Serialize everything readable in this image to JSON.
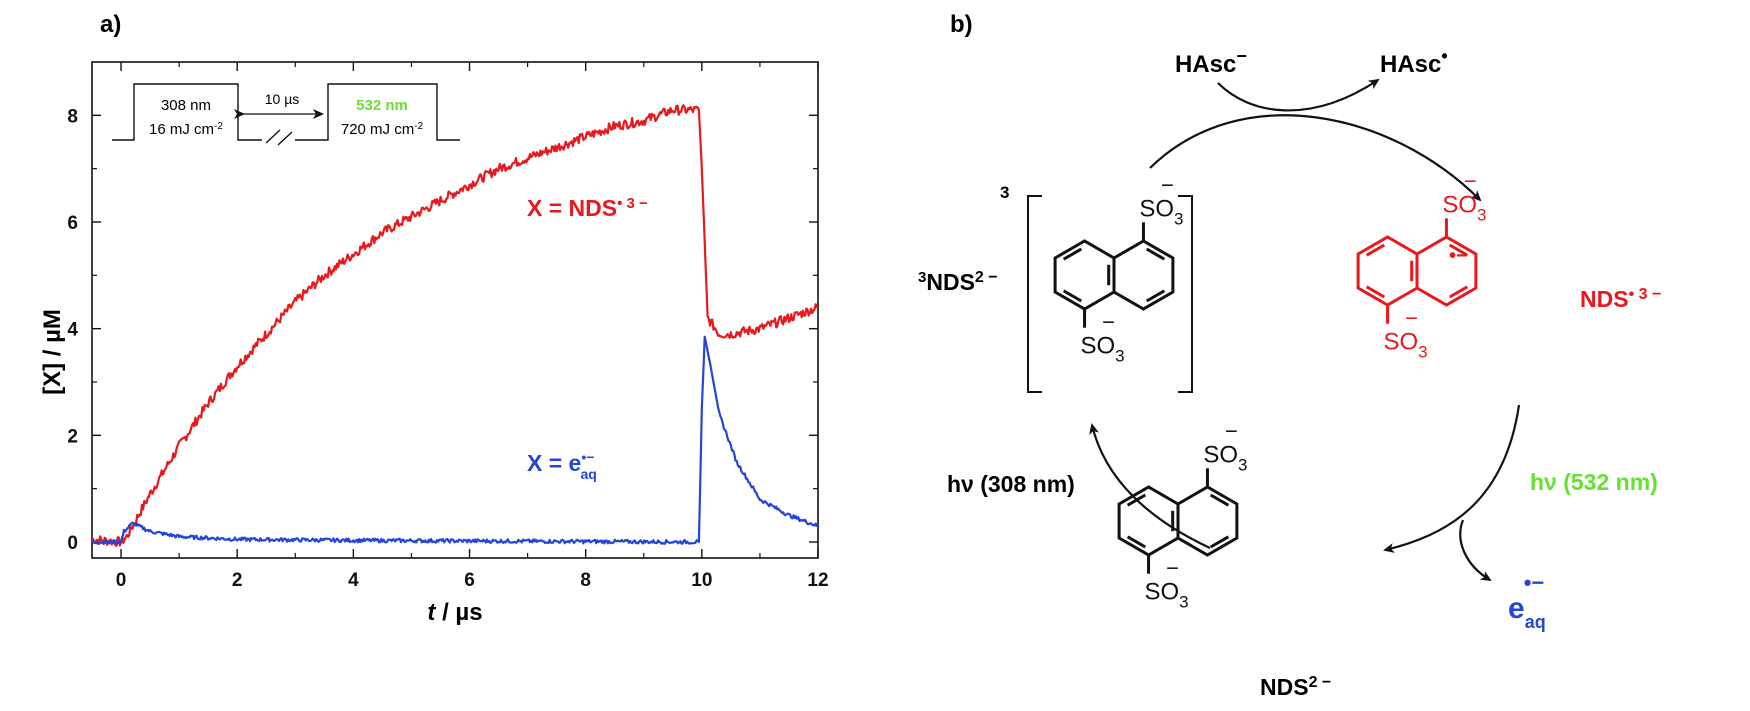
{
  "panel_a": {
    "label": "a)",
    "x_axis_label_italic": "t",
    "x_axis_label_rest": " / µs",
    "y_axis_label": "[X] / µM",
    "inset": {
      "pulse1_wavelength": "308 nm",
      "pulse1_energy": "16 mJ cm",
      "pulse1_energy_exp": "-2",
      "delay": "10 µs",
      "pulse2_wavelength": "532 nm",
      "pulse2_energy": "720 mJ cm",
      "pulse2_energy_exp": "-2"
    },
    "series_label_nds": "X = NDS",
    "series_label_nds_sup": "• 3 −",
    "series_label_e": "X = e",
    "series_label_e_sup": "•−",
    "series_label_e_sub": "aq"
  },
  "chart_data": {
    "type": "line",
    "x_ticks": [
      "0",
      "2",
      "4",
      "6",
      "8",
      "10",
      "12"
    ],
    "y_ticks": [
      "0",
      "2",
      "4",
      "6",
      "8"
    ],
    "xlim": [
      -0.5,
      12
    ],
    "ylim": [
      -0.3,
      9
    ],
    "series": [
      {
        "color": "#e8181c",
        "x": [
          -0.5,
          0.0,
          0.1,
          0.5,
          1.0,
          1.5,
          2.0,
          2.5,
          3.0,
          3.5,
          4.0,
          4.5,
          5.0,
          5.5,
          6.0,
          6.5,
          7.0,
          7.5,
          8.0,
          8.5,
          9.0,
          9.5,
          9.95,
          10.0,
          10.1,
          10.3,
          10.5,
          11.0,
          11.5,
          12.0
        ],
        "y": [
          0.05,
          0.0,
          0.1,
          0.9,
          1.8,
          2.6,
          3.3,
          3.9,
          4.5,
          5.0,
          5.4,
          5.8,
          6.1,
          6.4,
          6.7,
          7.0,
          7.2,
          7.4,
          7.6,
          7.8,
          7.9,
          8.1,
          8.1,
          7.0,
          4.2,
          3.9,
          3.9,
          4.0,
          4.2,
          4.4
        ]
      },
      {
        "color": "#2446d8",
        "x": [
          -0.5,
          0.0,
          0.05,
          0.2,
          0.5,
          1.0,
          2.0,
          4.0,
          6.0,
          8.0,
          9.95,
          10.0,
          10.05,
          10.15,
          10.3,
          10.6,
          11.0,
          11.5,
          12.0
        ],
        "y": [
          0.0,
          0.0,
          0.2,
          0.35,
          0.2,
          0.1,
          0.05,
          0.03,
          0.02,
          0.01,
          0.0,
          2.5,
          3.85,
          3.3,
          2.4,
          1.5,
          0.8,
          0.5,
          0.3
        ]
      }
    ]
  },
  "panel_b": {
    "label": "b)",
    "hasc_minus": "HAsc",
    "hasc_minus_sup": "−",
    "hasc_radical": "HAsc",
    "hasc_radical_sup": "•",
    "triplet_label": "NDS",
    "triplet_pre_sup": "3",
    "triplet_charge": "2 −",
    "bracket_sup": "3",
    "radical_label": "NDS",
    "radical_charge": "• 3 −",
    "ground_label": "NDS",
    "ground_charge": "2 −",
    "hv308": "hν (308 nm)",
    "hv532": "hν (532 nm)",
    "electron": "e",
    "electron_sub": "aq",
    "electron_sup": "•−",
    "so3": "SO",
    "so3_sub": "3",
    "so3_charge": "−",
    "radical_mark": "•−"
  },
  "colors": {
    "red": "#e8181c",
    "blue": "#2446d8",
    "green": "#66e033",
    "black": "#111111"
  }
}
